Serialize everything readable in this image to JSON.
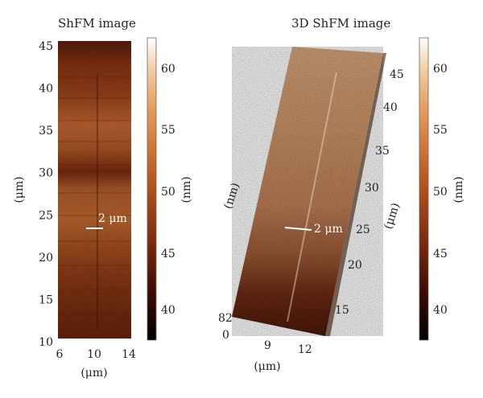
{
  "left_panel": {
    "title": "ShFM image",
    "x_ticks": [
      "6",
      "10",
      "14"
    ],
    "y_ticks": [
      "10",
      "15",
      "20",
      "25",
      "30",
      "35",
      "40",
      "45"
    ],
    "x_label": "(μm)",
    "y_label": "(μm)",
    "scale_bar_label": "2 μm",
    "colorbar": {
      "ticks": [
        "40",
        "45",
        "50",
        "55",
        "60"
      ],
      "label": "(nm)"
    }
  },
  "right_panel": {
    "title": "3D ShFM image",
    "z_ticks": [
      "0",
      "82"
    ],
    "z_label": "(nm)",
    "x_ticks": [
      "9",
      "12"
    ],
    "x_label": "(μm)",
    "y_ticks": [
      "15",
      "20",
      "25",
      "30",
      "35",
      "40",
      "45"
    ],
    "y_label": "(μm)",
    "scale_bar_label": "2 μm",
    "colorbar": {
      "ticks": [
        "40",
        "45",
        "50",
        "55",
        "60"
      ],
      "label": "(nm)"
    }
  },
  "colors": {
    "colormap": [
      "#000000",
      "#3a0a02",
      "#7a2a0c",
      "#b0501c",
      "#d27a3a",
      "#e7a064",
      "#f3cfa8",
      "#ffffff"
    ]
  }
}
